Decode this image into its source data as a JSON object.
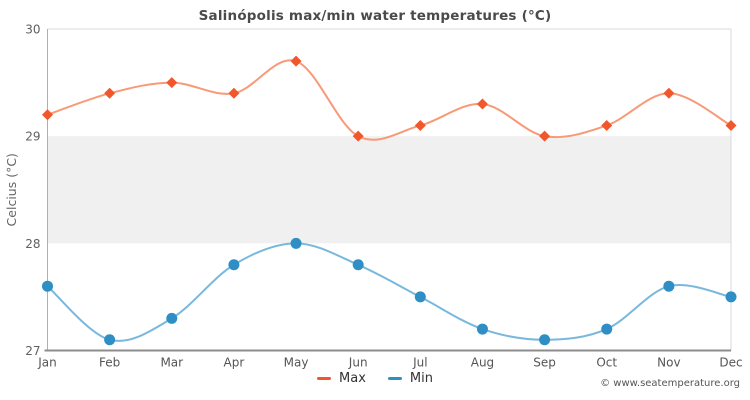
{
  "title": "Salinópolis max/min water temperatures (°C)",
  "copyright": "© www.seatemperature.org",
  "legend": {
    "max_label": "Max",
    "min_label": "Min"
  },
  "chart_data": {
    "type": "line",
    "smooth": true,
    "grid": false,
    "title": "Salinópolis max/min water temperatures (°C)",
    "xlabel": "",
    "ylabel": "Celcius (°C)",
    "categories": [
      "Jan",
      "Feb",
      "Mar",
      "Apr",
      "May",
      "Jun",
      "Jul",
      "Aug",
      "Sep",
      "Oct",
      "Nov",
      "Dec"
    ],
    "series": [
      {
        "name": "Max",
        "values": [
          29.2,
          29.4,
          29.5,
          29.4,
          29.7,
          29.0,
          29.1,
          29.3,
          29.0,
          29.1,
          29.4,
          29.1
        ],
        "line_color": "#f89a77",
        "marker_color": "#f2572b",
        "marker": "diamond"
      },
      {
        "name": "Min",
        "values": [
          27.6,
          27.1,
          27.3,
          27.8,
          28.0,
          27.8,
          27.5,
          27.2,
          27.1,
          27.2,
          27.6,
          27.5
        ],
        "line_color": "#79b8dd",
        "marker_color": "#2f8fc5",
        "marker": "circle"
      }
    ],
    "ylim": [
      27,
      30
    ],
    "yticks": [
      27,
      28,
      29,
      30
    ],
    "plot_band": {
      "from": 28,
      "to": 29,
      "color": "#f0f0f0"
    },
    "legend_position": "bottom-center",
    "colors": {
      "title_text": "#4a4a4a",
      "axis_line_left": "#b0b0b0",
      "axis_line_bottom": "#8c8c8c",
      "plot_border": "#d9d9d9",
      "band": "#f0f0f0"
    }
  }
}
